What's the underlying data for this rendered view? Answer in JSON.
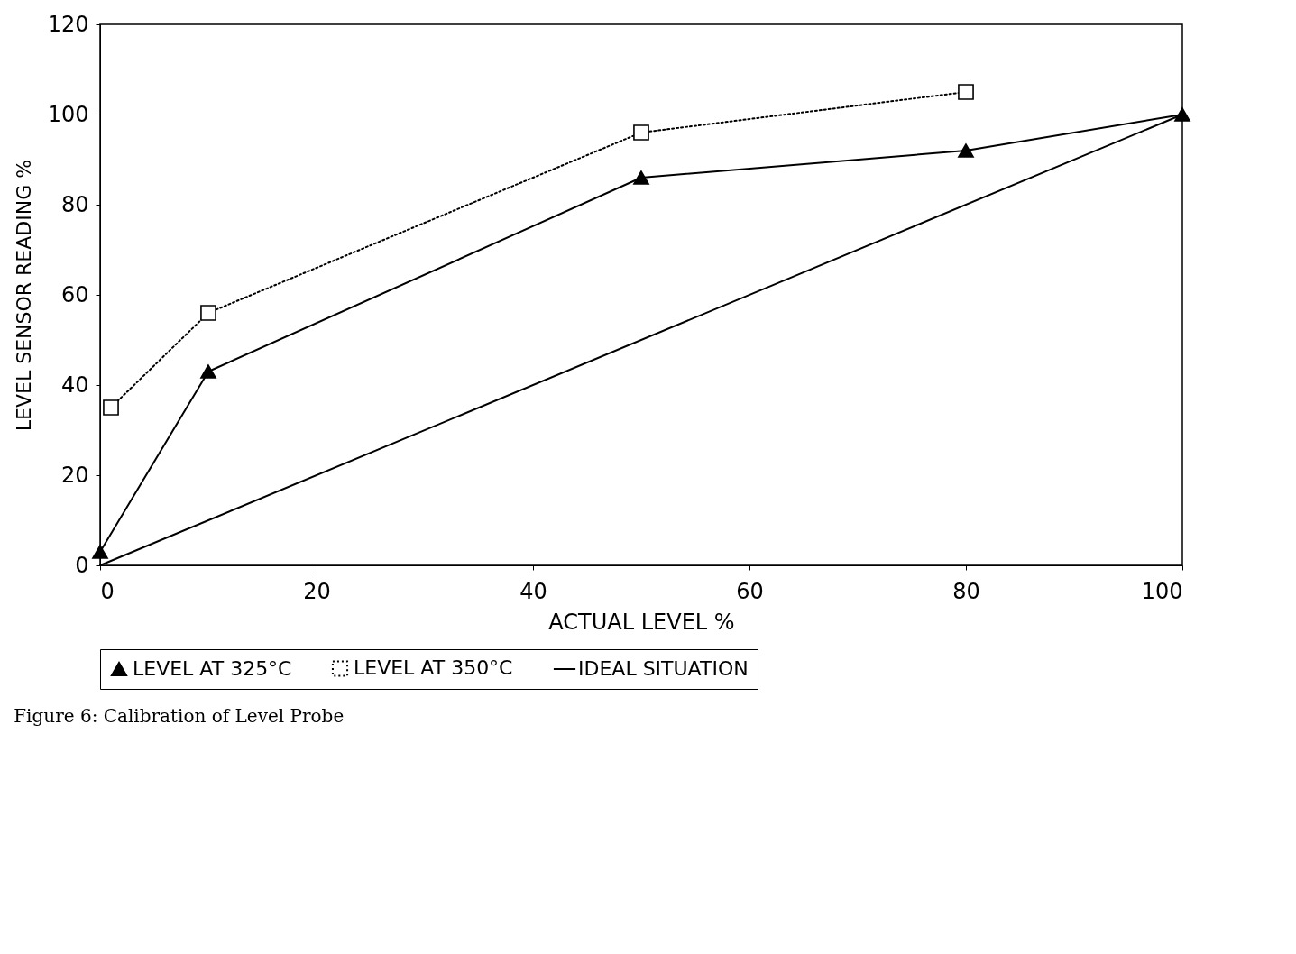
{
  "chart_data": {
    "type": "line",
    "xlabel": "ACTUAL LEVEL %",
    "ylabel": "LEVEL SENSOR READING  %",
    "xlim": [
      0,
      100
    ],
    "ylim": [
      0,
      120
    ],
    "xticks": [
      0,
      20,
      40,
      60,
      80,
      100
    ],
    "yticks": [
      0,
      20,
      40,
      60,
      80,
      100,
      120
    ],
    "grid": false,
    "legend": "bottom",
    "series": [
      {
        "name": "LEVEL AT 325°C",
        "color": "#000000",
        "marker": "triangle",
        "line_style": "solid",
        "x": [
          0,
          10,
          50,
          80,
          100
        ],
        "values": [
          3,
          43,
          86,
          92,
          100
        ]
      },
      {
        "name": "LEVEL AT 350°C",
        "color": "#000000",
        "marker": "square",
        "line_style": "dotted",
        "x": [
          1,
          10,
          50,
          80
        ],
        "values": [
          35,
          56,
          96,
          105
        ]
      },
      {
        "name": "IDEAL SITUATION",
        "color": "#000000",
        "marker": "none",
        "line_style": "solid",
        "x": [
          0,
          100
        ],
        "values": [
          0,
          100
        ]
      }
    ],
    "annotations": [
      "Figure 6:      Calibration of Level Probe"
    ]
  }
}
